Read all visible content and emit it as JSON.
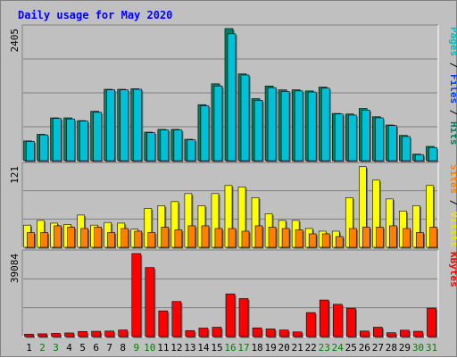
{
  "chart_data": {
    "type": "bar",
    "title": "Daily usage for May 2020",
    "days": [
      "1",
      "2",
      "3",
      "4",
      "5",
      "6",
      "7",
      "8",
      "9",
      "10",
      "11",
      "12",
      "13",
      "14",
      "15",
      "16",
      "17",
      "18",
      "19",
      "20",
      "21",
      "22",
      "23",
      "24",
      "25",
      "26",
      "27",
      "28",
      "29",
      "30",
      "31"
    ],
    "weekend_days": [
      "2",
      "3",
      "9",
      "10",
      "16",
      "17",
      "23",
      "24",
      "30",
      "31"
    ],
    "panels": [
      {
        "name": "pages-files-hits",
        "max_label": "2405",
        "max_value": 2405,
        "side_label": [
          {
            "text": "Pages",
            "color": "#00c0c0"
          },
          {
            "text": " / ",
            "color": "#000000"
          },
          {
            "text": "Files",
            "color": "#0040ff"
          },
          {
            "text": " / ",
            "color": "#000000"
          },
          {
            "text": "Hits",
            "color": "#008060"
          }
        ],
        "series": [
          {
            "name": "Hits",
            "color": "#008060",
            "values": [
              360,
              480,
              780,
              780,
              730,
              900,
              1300,
              1300,
              1310,
              520,
              570,
              570,
              390,
              1020,
              1400,
              2405,
              1580,
              1130,
              1360,
              1290,
              1290,
              1270,
              1340,
              860,
              850,
              950,
              800,
              650,
              460,
              120,
              260
            ]
          },
          {
            "name": "Files",
            "color": "#00c0d8",
            "values": [
              350,
              470,
              770,
              760,
              720,
              880,
              1290,
              1290,
              1300,
              510,
              560,
              560,
              380,
              1000,
              1360,
              2310,
              1560,
              1100,
              1330,
              1260,
              1270,
              1250,
              1320,
              850,
              830,
              920,
              780,
              640,
              440,
              110,
              240
            ]
          },
          {
            "name": "Pages",
            "color": "#0040ff",
            "values": [
              0,
              0,
              0,
              0,
              0,
              0,
              0,
              0,
              0,
              0,
              0,
              0,
              0,
              0,
              0,
              0,
              0,
              0,
              0,
              0,
              0,
              0,
              0,
              0,
              0,
              0,
              0,
              0,
              0,
              0,
              0
            ]
          }
        ]
      },
      {
        "name": "sites-visits",
        "max_label": "121",
        "max_value": 121,
        "side_label": [
          {
            "text": "Sites",
            "color": "#ff8000"
          },
          {
            "text": " / ",
            "color": "#000000"
          },
          {
            "text": "Visits",
            "color": "#e8e800"
          }
        ],
        "series": [
          {
            "name": "Visits",
            "color": "#ffff00",
            "values": [
              33,
              40,
              36,
              34,
              48,
              33,
              37,
              36,
              27,
              58,
              62,
              68,
              80,
              62,
              80,
              92,
              90,
              74,
              50,
              40,
              40,
              28,
              24,
              24,
              74,
              120,
              100,
              72,
              54,
              62,
              92
            ]
          },
          {
            "name": "Sites",
            "color": "#ff8000",
            "values": [
              22,
              22,
              32,
              30,
              28,
              30,
              22,
              28,
              24,
              22,
              30,
              26,
              32,
              32,
              28,
              28,
              24,
              32,
              30,
              28,
              26,
              20,
              20,
              16,
              28,
              30,
              30,
              32,
              28,
              22,
              30
            ]
          }
        ]
      },
      {
        "name": "kbytes",
        "max_label": "39084",
        "max_value": 39084,
        "side_label": [
          {
            "text": "KBytes",
            "color": "#ff0000"
          }
        ],
        "series": [
          {
            "name": "KBytes",
            "color": "#ff0000",
            "values": [
              1100,
              1300,
              1500,
              1700,
              2400,
              2500,
              2600,
              3100,
              39084,
              32500,
              12100,
              16500,
              2800,
              4000,
              4400,
              20100,
              17900,
              4100,
              3600,
              3100,
              2200,
              11300,
              17200,
              15200,
              13400,
              2600,
              4400,
              1800,
              3000,
              2500,
              13400
            ]
          }
        ]
      }
    ]
  }
}
